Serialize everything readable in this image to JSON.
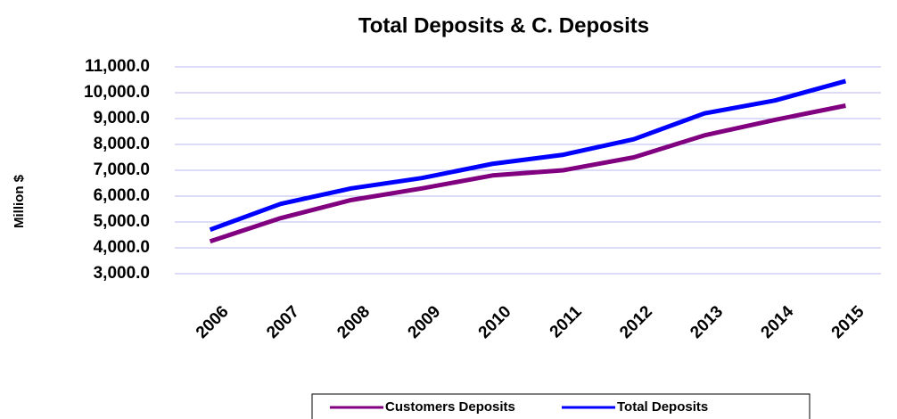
{
  "chart_data": {
    "type": "line",
    "title": "Total Deposits & C. Deposits",
    "y_label": "Million $",
    "categories": [
      "2006",
      "2007",
      "2008",
      "2009",
      "2010",
      "2011",
      "2012",
      "2013",
      "2014",
      "2015"
    ],
    "series": [
      {
        "name": "Customers Deposits",
        "color": "#800080",
        "values": [
          4250,
          5150,
          5850,
          6300,
          6800,
          7000,
          7500,
          8350,
          8950,
          9500
        ]
      },
      {
        "name": "Total Deposits",
        "color": "#0000ff",
        "values": [
          4700,
          5700,
          6300,
          6700,
          7250,
          7600,
          8200,
          9200,
          9700,
          10450
        ]
      }
    ],
    "ylim": [
      3000,
      11000
    ],
    "yticks": [
      {
        "value": 3000,
        "label": "3,000.0"
      },
      {
        "value": 4000,
        "label": "4,000.0"
      },
      {
        "value": 5000,
        "label": "5,000.0"
      },
      {
        "value": 6000,
        "label": "6,000.0"
      },
      {
        "value": 7000,
        "label": "7,000.0"
      },
      {
        "value": 8000,
        "label": "8,000.0"
      },
      {
        "value": 9000,
        "label": "9,000.0"
      },
      {
        "value": 10000,
        "label": "10,000.0"
      },
      {
        "value": 11000,
        "label": "11,000.0"
      }
    ],
    "grid": true,
    "legend": "bottom"
  }
}
